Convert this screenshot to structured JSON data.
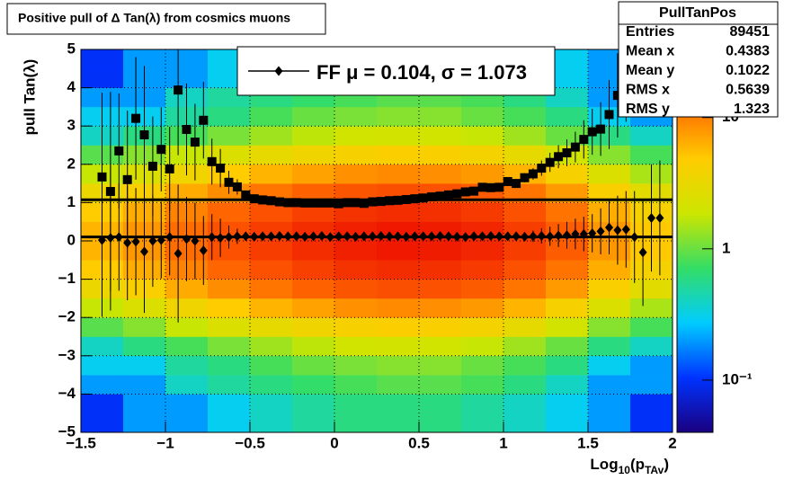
{
  "chart_data": {
    "type": "heatmap",
    "title": "Positive pull of Δ Tan(λ) from cosmics muons",
    "ylabel": "pull Tan(λ)",
    "xlabel_parts": [
      "Log",
      "10",
      "(p",
      "TAv",
      ")"
    ],
    "xlim": [
      -1.5,
      2
    ],
    "ylim": [
      -5,
      5
    ],
    "zlim": [
      0.04,
      33
    ],
    "zlog": true,
    "grid": true,
    "xticks": [
      {
        "value": -1.5,
        "label": "−1.5"
      },
      {
        "value": -1,
        "label": "−1"
      },
      {
        "value": -0.5,
        "label": "−0.5"
      },
      0,
      0.5,
      1,
      1.5,
      2
    ],
    "yticks": [
      {
        "value": -5,
        "label": "−5"
      },
      {
        "value": -4,
        "label": "−4"
      },
      {
        "value": -3,
        "label": "−3"
      },
      {
        "value": -2,
        "label": "−2"
      },
      {
        "value": -1,
        "label": "−1"
      },
      0,
      1,
      2,
      3,
      4,
      5
    ],
    "zticks": [
      {
        "value": 0.1,
        "label": "10⁻¹"
      },
      1,
      10
    ],
    "palette": [
      "#1a0080",
      "#0033ff",
      "#00ccff",
      "#33dd66",
      "#cce600",
      "#ffcc00",
      "#ff6600",
      "#ee1100"
    ],
    "heatmap": {
      "xbins": [
        -1.5,
        -1.25,
        -1,
        -0.75,
        -0.5,
        -0.25,
        0,
        0.25,
        0.5,
        0.75,
        1,
        1.25,
        1.5,
        1.75,
        2
      ],
      "ybins": [
        -5,
        -4.5,
        -4,
        -3.5,
        -3,
        -2.5,
        -2,
        -1.5,
        -1,
        -0.5,
        0,
        0.5,
        1,
        1.5,
        2,
        2.5,
        3,
        3.5,
        4,
        4.5,
        5
      ],
      "z": [
        [
          0.1,
          0.2,
          0.2,
          0.3,
          0.4,
          0.5,
          0.6,
          0.6,
          0.6,
          0.5,
          0.4,
          0.3,
          0.2,
          0.1
        ],
        [
          0.1,
          0.2,
          0.2,
          0.3,
          0.4,
          0.5,
          0.6,
          0.6,
          0.6,
          0.5,
          0.4,
          0.3,
          0.2,
          0.1
        ],
        [
          0.2,
          0.2,
          0.4,
          0.5,
          0.6,
          0.7,
          0.8,
          0.9,
          0.9,
          0.8,
          0.6,
          0.4,
          0.2,
          0.2
        ],
        [
          0.3,
          0.3,
          0.5,
          0.6,
          0.8,
          1,
          1.1,
          1.2,
          1.2,
          1,
          0.8,
          0.6,
          0.3,
          0.2
        ],
        [
          0.4,
          0.6,
          0.8,
          1.1,
          1.4,
          1.7,
          2,
          2.1,
          2,
          1.8,
          1.4,
          1,
          0.6,
          0.4
        ],
        [
          0.9,
          1.2,
          1.8,
          2.4,
          3,
          3.6,
          4.2,
          4.5,
          4.4,
          3.9,
          3,
          2.1,
          1.2,
          0.8
        ],
        [
          1.8,
          2.4,
          3.6,
          4.8,
          6,
          7.2,
          8.4,
          9,
          8.7,
          7.8,
          6,
          4.2,
          2.4,
          1.5
        ],
        [
          3.3,
          4.4,
          6.6,
          8.8,
          11,
          13.2,
          15.4,
          16.5,
          16,
          14.3,
          11,
          7.7,
          4.4,
          2.8
        ],
        [
          4.8,
          6.4,
          9.6,
          12.8,
          16,
          19.2,
          22.4,
          24,
          23.2,
          20.8,
          16,
          11.2,
          6.4,
          4
        ],
        [
          6,
          8,
          12,
          16,
          20,
          24,
          28,
          30,
          29,
          26,
          20,
          14,
          8,
          5
        ],
        [
          6,
          8,
          12,
          16,
          20,
          24,
          28,
          30,
          29,
          26,
          20,
          14,
          8,
          5
        ],
        [
          4.8,
          6.4,
          9.6,
          12.8,
          16,
          19.2,
          22.4,
          24,
          23.2,
          20.8,
          16,
          11.2,
          6.4,
          4
        ],
        [
          3.3,
          4.4,
          6.6,
          8.8,
          11,
          13.2,
          15.4,
          16.5,
          16,
          14.3,
          11,
          7.7,
          4.4,
          2.8
        ],
        [
          1.8,
          2.4,
          3.6,
          4.8,
          6,
          7.2,
          8.4,
          9,
          8.7,
          7.8,
          6,
          4.2,
          2.4,
          1.5
        ],
        [
          0.9,
          1.2,
          1.8,
          2.4,
          3,
          3.6,
          4.2,
          4.5,
          4.4,
          3.9,
          3,
          2.1,
          1.2,
          0.8
        ],
        [
          0.4,
          0.6,
          0.8,
          1.1,
          1.4,
          1.7,
          2,
          2.1,
          2,
          1.8,
          1.4,
          1,
          0.6,
          0.4
        ],
        [
          0.3,
          0.3,
          0.5,
          0.6,
          0.8,
          1,
          1.1,
          1.2,
          1.2,
          1,
          0.8,
          0.6,
          0.3,
          0.2
        ],
        [
          0.2,
          0.2,
          0.4,
          0.5,
          0.6,
          0.7,
          0.8,
          0.9,
          0.9,
          0.8,
          0.6,
          0.4,
          0.2,
          0.2
        ],
        [
          0.1,
          0.2,
          0.2,
          0.3,
          0.4,
          0.5,
          0.6,
          0.6,
          0.6,
          0.5,
          0.4,
          0.3,
          0.2,
          0.1
        ],
        [
          0.1,
          0.2,
          0.2,
          0.3,
          0.4,
          0.5,
          0.6,
          0.6,
          0.6,
          0.5,
          0.4,
          0.3,
          0.2,
          0.1
        ]
      ]
    },
    "profiles": [
      {
        "marker": "square",
        "color": "#000000",
        "x": [
          -1.375,
          -1.325,
          -1.275,
          -1.225,
          -1.175,
          -1.125,
          -1.075,
          -1.025,
          -0.975,
          -0.925,
          -0.875,
          -0.825,
          -0.775,
          -0.725,
          -0.675,
          -0.625,
          -0.575,
          -0.525,
          -0.475,
          -0.425,
          -0.375,
          -0.325,
          -0.275,
          -0.225,
          -0.175,
          -0.125,
          -0.075,
          -0.025,
          0.025,
          0.075,
          0.125,
          0.175,
          0.225,
          0.275,
          0.325,
          0.375,
          0.425,
          0.475,
          0.525,
          0.575,
          0.625,
          0.675,
          0.725,
          0.775,
          0.825,
          0.875,
          0.925,
          0.975,
          1.025,
          1.075,
          1.125,
          1.175,
          1.225,
          1.275,
          1.325,
          1.375,
          1.425,
          1.475,
          1.525,
          1.575,
          1.625,
          1.675,
          1.725
        ],
        "values": [
          1.67,
          1.29,
          2.35,
          1.6,
          3.2,
          2.77,
          1.95,
          2.39,
          1.88,
          3.94,
          2.91,
          2.58,
          3.15,
          2.07,
          1.9,
          1.53,
          1.41,
          1.2,
          1.1,
          1.07,
          1.05,
          1.02,
          1,
          1,
          0.99,
          0.99,
          0.99,
          0.99,
          0.97,
          1,
          1,
          0.98,
          1.02,
          1.03,
          1.05,
          1.06,
          1.08,
          1.1,
          1.12,
          1.15,
          1.17,
          1.2,
          1.23,
          1.28,
          1.3,
          1.4,
          1.39,
          1.4,
          1.55,
          1.5,
          1.65,
          1.75,
          1.9,
          2.05,
          2.2,
          2.3,
          2.45,
          2.65,
          2.85,
          2.92,
          3.3,
          3.8,
          4.41
        ],
        "errors": [
          2.2,
          2.6,
          1.5,
          1.8,
          1.6,
          1.8,
          1.3,
          1.1,
          1.1,
          1.7,
          1.2,
          1,
          1,
          0.6,
          0.5,
          0.3,
          0.2,
          0.1,
          0.06,
          0.04,
          0.04,
          0.04,
          0.04,
          0.04,
          0.04,
          0.04,
          0.04,
          0.04,
          0.04,
          0.04,
          0.04,
          0.04,
          0.04,
          0.04,
          0.04,
          0.04,
          0.04,
          0.04,
          0.05,
          0.05,
          0.05,
          0.05,
          0.05,
          0.06,
          0.06,
          0.06,
          0.07,
          0.07,
          0.08,
          0.1,
          0.12,
          0.15,
          0.2,
          0.25,
          0.3,
          0.35,
          0.4,
          0.5,
          0.6,
          0.7,
          0.9,
          1.1,
          1.3
        ]
      },
      {
        "marker": "diamond",
        "color": "#000000",
        "x": [
          -1.375,
          -1.325,
          -1.275,
          -1.225,
          -1.175,
          -1.125,
          -1.075,
          -1.025,
          -0.975,
          -0.925,
          -0.875,
          -0.825,
          -0.775,
          -0.725,
          -0.675,
          -0.625,
          -0.575,
          -0.525,
          -0.475,
          -0.425,
          -0.375,
          -0.325,
          -0.275,
          -0.225,
          -0.175,
          -0.125,
          -0.075,
          -0.025,
          0.025,
          0.075,
          0.125,
          0.175,
          0.225,
          0.275,
          0.325,
          0.375,
          0.425,
          0.475,
          0.525,
          0.575,
          0.625,
          0.675,
          0.725,
          0.775,
          0.825,
          0.875,
          0.925,
          0.975,
          1.025,
          1.075,
          1.125,
          1.175,
          1.225,
          1.275,
          1.325,
          1.375,
          1.425,
          1.475,
          1.525,
          1.575,
          1.625,
          1.675,
          1.725,
          1.775,
          1.825,
          1.875,
          1.925
        ],
        "values": [
          0.02,
          0.08,
          0.1,
          -0.05,
          -0.02,
          -0.28,
          0,
          0.02,
          0.1,
          -0.33,
          0.05,
          0,
          -0.25,
          0.1,
          0.08,
          0.1,
          0.12,
          0.12,
          0.11,
          0.12,
          0.12,
          0.13,
          0.12,
          0.12,
          0.11,
          0.12,
          0.13,
          0.1,
          0.12,
          0.12,
          0.11,
          0.12,
          0.12,
          0.13,
          0.12,
          0.12,
          0.11,
          0.12,
          0.12,
          0.12,
          0.13,
          0.12,
          0.11,
          0.1,
          0.12,
          0.12,
          0.13,
          0.12,
          0.12,
          0.12,
          0.11,
          0.12,
          0.13,
          0.12,
          0.14,
          0.15,
          0.18,
          0.18,
          0.2,
          0.25,
          0.35,
          0.28,
          0.3,
          0.1,
          -0.3,
          0.6,
          0.6
        ],
        "errors": [
          2,
          1.9,
          1.4,
          1.5,
          1.4,
          1.6,
          1.2,
          1,
          1,
          1.8,
          1.1,
          1,
          0.9,
          0.6,
          0.5,
          0.3,
          0.2,
          0.1,
          0.08,
          0.06,
          0.05,
          0.05,
          0.05,
          0.05,
          0.05,
          0.05,
          0.05,
          0.05,
          0.05,
          0.05,
          0.05,
          0.05,
          0.05,
          0.05,
          0.05,
          0.05,
          0.05,
          0.05,
          0.05,
          0.05,
          0.05,
          0.06,
          0.06,
          0.06,
          0.07,
          0.07,
          0.08,
          0.08,
          0.1,
          0.1,
          0.12,
          0.15,
          0.2,
          0.25,
          0.3,
          0.35,
          0.4,
          0.45,
          0.5,
          0.6,
          0.7,
          0.9,
          1,
          1.2,
          1.4,
          1.4,
          1.5
        ]
      }
    ],
    "fit_lines": [
      0.104,
      1.073
    ],
    "legend": {
      "label": "FF μ =  0.104, σ =   1.073",
      "marker": "diamond"
    },
    "stats": {
      "title": "PullTanPos",
      "rows": [
        [
          "Entries",
          89451
        ],
        [
          "Mean x",
          0.4383
        ],
        [
          "Mean y",
          0.1022
        ],
        [
          "RMS x",
          0.5639
        ],
        [
          "RMS y",
          1.323
        ]
      ]
    }
  }
}
